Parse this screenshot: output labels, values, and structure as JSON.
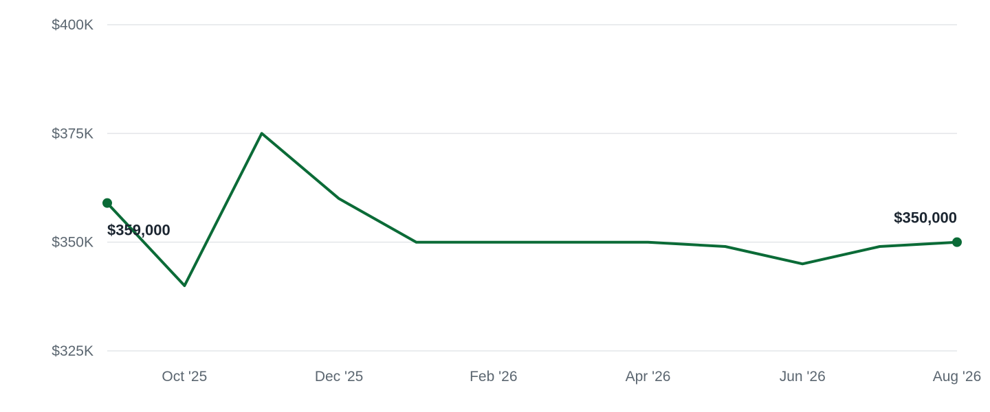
{
  "chart_data": {
    "type": "line",
    "title": "",
    "xlabel": "",
    "ylabel": "",
    "ylim": [
      325000,
      400000
    ],
    "y_ticks": [
      {
        "value": 400000,
        "label": "$400K"
      },
      {
        "value": 375000,
        "label": "$375K"
      },
      {
        "value": 350000,
        "label": "$350K"
      },
      {
        "value": 325000,
        "label": "$325K"
      }
    ],
    "x_ticks": [
      {
        "index": 1,
        "label": "Oct '25"
      },
      {
        "index": 3,
        "label": "Dec '25"
      },
      {
        "index": 5,
        "label": "Feb '26"
      },
      {
        "index": 7,
        "label": "Apr '26"
      },
      {
        "index": 9,
        "label": "Jun '26"
      },
      {
        "index": 11,
        "label": "Aug '26"
      }
    ],
    "series": [
      {
        "color": "#0b6b37",
        "values": [
          359000,
          340000,
          375000,
          360000,
          350000,
          350000,
          350000,
          350000,
          349000,
          345000,
          349000,
          350000
        ]
      }
    ],
    "grid": true,
    "annotations": [
      {
        "index": 0,
        "label": "$359,000"
      },
      {
        "index": 11,
        "label": "$350,000"
      }
    ]
  }
}
